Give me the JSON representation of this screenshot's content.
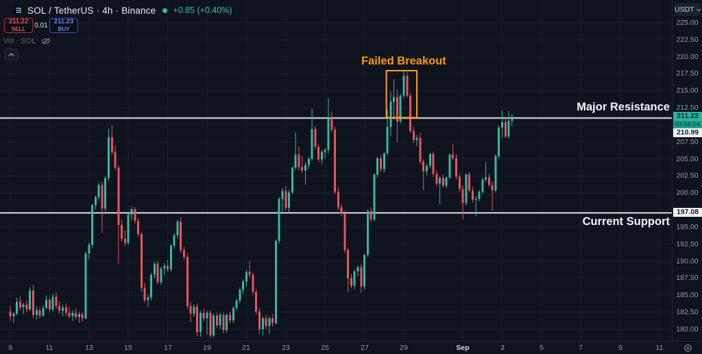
{
  "header": {
    "symbol_title": "SOL / TetherUS · 4h · Binance",
    "change_text": "+0.85 (+0.40%)",
    "sell_price": "211.22",
    "sell_label": "SELL",
    "spread": "0.01",
    "buy_price": "211.23",
    "buy_label": "BUY",
    "vol_label": "Vol · SOL"
  },
  "annotations": {
    "failed_breakout": "Failed Breakout",
    "major_resistance": "Major Resistance",
    "current_support": "Current Support"
  },
  "price_axis": {
    "currency_button": "USDT",
    "labels": [
      "225.00",
      "222.50",
      "220.00",
      "217.50",
      "215.00",
      "212.50",
      "207.50",
      "205.00",
      "202.50",
      "200.00",
      "195.00",
      "192.50",
      "190.00",
      "187.50",
      "185.00",
      "182.50",
      "180.00"
    ],
    "current_price_marker": "211.23",
    "countdown": "03:56:04",
    "resistance_marker": "210.99",
    "support_marker": "197.08"
  },
  "time_axis": {
    "labels": [
      {
        "text": "9",
        "day_offset": 0
      },
      {
        "text": "11",
        "day_offset": 2
      },
      {
        "text": "13",
        "day_offset": 4
      },
      {
        "text": "15",
        "day_offset": 6
      },
      {
        "text": "17",
        "day_offset": 8
      },
      {
        "text": "19",
        "day_offset": 10
      },
      {
        "text": "21",
        "day_offset": 12
      },
      {
        "text": "23",
        "day_offset": 14
      },
      {
        "text": "25",
        "day_offset": 16
      },
      {
        "text": "27",
        "day_offset": 18
      },
      {
        "text": "29",
        "day_offset": 20
      },
      {
        "text": "Sep",
        "day_offset": 23,
        "month": true
      },
      {
        "text": "3",
        "day_offset": 25
      },
      {
        "text": "5",
        "day_offset": 27
      },
      {
        "text": "7",
        "day_offset": 29
      },
      {
        "text": "9",
        "day_offset": 31
      },
      {
        "text": "11",
        "day_offset": 33
      }
    ]
  },
  "colors": {
    "background": "#0f131d",
    "up_candle": "#35b8a6",
    "down_candle": "#e9545f",
    "resistance_line": "#bfc2c9",
    "support_line": "#e9ebee",
    "breakout_box": "#ffa21e",
    "annotation_orange": "#ff9800",
    "current_label_bg": "#2bb3a2",
    "grid": "rgba(145,160,195,0.08)"
  },
  "chart_data": {
    "type": "candlestick",
    "title": "SOL / TetherUS · 4h · Binance",
    "timeframe": "4h",
    "quote_currency": "USDT",
    "last_price": 211.23,
    "change_abs": 0.85,
    "change_pct": 0.4,
    "ylim": [
      178.3,
      226.5
    ],
    "price_tick_step": 2.5,
    "start_date": "Aug 9",
    "candles_per_day": 6,
    "levels": {
      "resistance": 210.99,
      "support": 197.08
    },
    "highlight_box": {
      "label": "Failed Breakout",
      "start_index": 114.7,
      "end_index": 124,
      "price_low": 211.05,
      "price_high": 217.95
    },
    "candles": [
      [
        182.6,
        183.4,
        181.2,
        181.9
      ],
      [
        181.9,
        182.5,
        180.9,
        182.3
      ],
      [
        182.3,
        184.6,
        182.0,
        184.0
      ],
      [
        184.0,
        184.8,
        182.8,
        183.2
      ],
      [
        183.2,
        183.9,
        182.2,
        183.6
      ],
      [
        183.6,
        184.2,
        182.5,
        182.9
      ],
      [
        182.9,
        186.2,
        182.7,
        185.7
      ],
      [
        185.7,
        186.5,
        181.6,
        182.1
      ],
      [
        182.1,
        183.4,
        181.4,
        182.8
      ],
      [
        182.8,
        183.2,
        181.6,
        182.0
      ],
      [
        182.0,
        183.5,
        181.8,
        183.1
      ],
      [
        183.1,
        184.9,
        182.9,
        184.3
      ],
      [
        184.3,
        184.7,
        182.5,
        182.9
      ],
      [
        182.9,
        185.2,
        182.6,
        184.8
      ],
      [
        184.8,
        185.4,
        183.0,
        183.4
      ],
      [
        183.4,
        184.1,
        182.3,
        182.7
      ],
      [
        182.7,
        183.6,
        181.9,
        183.2
      ],
      [
        183.2,
        183.8,
        182.0,
        182.4
      ],
      [
        182.4,
        183.3,
        181.6,
        181.9
      ],
      [
        181.9,
        182.8,
        181.2,
        182.4
      ],
      [
        182.4,
        183.0,
        181.5,
        181.8
      ],
      [
        181.8,
        182.6,
        181.0,
        182.2
      ],
      [
        182.2,
        182.5,
        181.1,
        181.6
      ],
      [
        181.6,
        191.4,
        181.4,
        191.1
      ],
      [
        191.1,
        192.7,
        190.3,
        192.4
      ],
      [
        192.4,
        198.4,
        192.0,
        198.2
      ],
      [
        198.2,
        199.7,
        197.6,
        199.4
      ],
      [
        199.4,
        201.5,
        198.9,
        201.2
      ],
      [
        201.2,
        201.7,
        194.1,
        197.7
      ],
      [
        197.7,
        202.5,
        197.3,
        202.2
      ],
      [
        202.2,
        209.4,
        201.8,
        208.2
      ],
      [
        208.2,
        209.9,
        205.6,
        206.0
      ],
      [
        206.0,
        207.0,
        203.4,
        203.7
      ],
      [
        203.7,
        204.1,
        189.6,
        195.3
      ],
      [
        195.3,
        196.1,
        192.9,
        193.3
      ],
      [
        193.3,
        194.5,
        192.2,
        192.7
      ],
      [
        192.7,
        197.0,
        192.4,
        196.8
      ],
      [
        196.8,
        198.0,
        196.0,
        197.6
      ],
      [
        197.6,
        197.9,
        195.5,
        195.9
      ],
      [
        195.9,
        196.3,
        193.6,
        194.0
      ],
      [
        194.0,
        194.3,
        185.5,
        186.1
      ],
      [
        186.1,
        186.8,
        183.9,
        184.3
      ],
      [
        184.3,
        185.1,
        183.3,
        184.7
      ],
      [
        184.7,
        188.3,
        184.2,
        188.0
      ],
      [
        188.0,
        189.9,
        187.5,
        189.6
      ],
      [
        189.6,
        190.0,
        186.6,
        186.9
      ],
      [
        186.9,
        189.2,
        186.5,
        188.9
      ],
      [
        188.9,
        189.7,
        188.0,
        189.3
      ],
      [
        189.3,
        190.2,
        188.4,
        188.8
      ],
      [
        188.8,
        192.5,
        188.5,
        192.3
      ],
      [
        192.3,
        194.1,
        191.8,
        193.8
      ],
      [
        193.8,
        196.1,
        193.3,
        195.8
      ],
      [
        195.8,
        196.5,
        191.2,
        191.6
      ],
      [
        191.6,
        192.1,
        190.2,
        190.6
      ],
      [
        190.6,
        191.2,
        183.0,
        183.4
      ],
      [
        183.4,
        184.0,
        181.0,
        182.3
      ],
      [
        182.3,
        183.7,
        181.8,
        183.3
      ],
      [
        183.3,
        183.8,
        179.0,
        179.6
      ],
      [
        179.6,
        182.7,
        178.9,
        182.4
      ],
      [
        182.4,
        183.0,
        181.2,
        181.6
      ],
      [
        181.6,
        182.7,
        179.2,
        182.4
      ],
      [
        182.4,
        182.8,
        178.7,
        179.1
      ],
      [
        179.1,
        182.3,
        178.8,
        182.0
      ],
      [
        182.0,
        182.4,
        180.2,
        180.6
      ],
      [
        180.6,
        182.4,
        180.0,
        182.1
      ],
      [
        182.1,
        182.5,
        179.4,
        179.9
      ],
      [
        179.9,
        182.3,
        179.5,
        182.1
      ],
      [
        182.1,
        182.6,
        180.9,
        181.3
      ],
      [
        181.3,
        183.4,
        180.9,
        183.1
      ],
      [
        183.1,
        184.5,
        182.7,
        184.2
      ],
      [
        184.2,
        186.1,
        183.8,
        185.8
      ],
      [
        185.8,
        187.3,
        185.2,
        187.0
      ],
      [
        187.0,
        188.7,
        186.3,
        188.4
      ],
      [
        188.4,
        190.1,
        187.6,
        188.0
      ],
      [
        188.0,
        188.3,
        185.1,
        185.5
      ],
      [
        185.5,
        185.9,
        182.2,
        182.6
      ],
      [
        182.6,
        183.1,
        179.3,
        180.0
      ],
      [
        180.0,
        181.9,
        179.1,
        181.6
      ],
      [
        181.6,
        182.1,
        180.0,
        180.5
      ],
      [
        180.5,
        181.9,
        179.3,
        181.6
      ],
      [
        181.6,
        182.2,
        180.4,
        180.9
      ],
      [
        180.9,
        193.2,
        180.7,
        193.0
      ],
      [
        193.0,
        199.4,
        192.6,
        199.1
      ],
      [
        199.1,
        200.7,
        197.2,
        200.3
      ],
      [
        200.3,
        201.0,
        197.4,
        197.8
      ],
      [
        197.8,
        200.5,
        197.2,
        200.1
      ],
      [
        200.1,
        203.9,
        199.8,
        203.7
      ],
      [
        203.7,
        208.9,
        203.4,
        205.6
      ],
      [
        205.6,
        206.8,
        203.3,
        203.8
      ],
      [
        203.8,
        205.4,
        202.9,
        203.3
      ],
      [
        203.3,
        204.5,
        201.2,
        204.1
      ],
      [
        204.1,
        205.3,
        203.5,
        205.0
      ],
      [
        205.0,
        212.4,
        204.7,
        209.4
      ],
      [
        209.4,
        209.8,
        206.4,
        206.8
      ],
      [
        206.8,
        207.1,
        204.5,
        204.9
      ],
      [
        204.9,
        206.3,
        204.3,
        206.0
      ],
      [
        206.0,
        206.6,
        205.1,
        206.3
      ],
      [
        206.3,
        213.9,
        205.8,
        211.0
      ],
      [
        211.0,
        212.0,
        208.9,
        209.3
      ],
      [
        209.3,
        209.7,
        199.8,
        200.2
      ],
      [
        200.2,
        200.8,
        197.5,
        197.9
      ],
      [
        197.9,
        198.4,
        196.6,
        197.0
      ],
      [
        197.0,
        197.4,
        191.2,
        191.6
      ],
      [
        191.6,
        192.0,
        185.4,
        187.5
      ],
      [
        187.5,
        188.1,
        186.0,
        186.4
      ],
      [
        186.4,
        188.8,
        185.9,
        188.5
      ],
      [
        188.5,
        189.4,
        187.8,
        189.1
      ],
      [
        189.1,
        189.6,
        185.3,
        186.3
      ],
      [
        186.3,
        191.1,
        185.8,
        190.9
      ],
      [
        190.9,
        197.6,
        190.6,
        197.3
      ],
      [
        197.3,
        197.9,
        195.7,
        196.1
      ],
      [
        196.1,
        202.9,
        195.8,
        202.7
      ],
      [
        202.7,
        205.3,
        202.3,
        205.1
      ],
      [
        205.1,
        205.6,
        203.1,
        203.5
      ],
      [
        203.5,
        206.0,
        203.0,
        205.8
      ],
      [
        205.8,
        212.2,
        205.5,
        209.7
      ],
      [
        209.7,
        214.9,
        208.3,
        213.4
      ],
      [
        213.4,
        216.7,
        211.0,
        214.1
      ],
      [
        214.1,
        215.2,
        207.4,
        210.5
      ],
      [
        210.5,
        214.6,
        210.2,
        214.3
      ],
      [
        214.3,
        217.9,
        213.9,
        217.2
      ],
      [
        217.2,
        217.7,
        214.0,
        214.3
      ],
      [
        214.3,
        214.7,
        208.8,
        209.1
      ],
      [
        209.1,
        209.7,
        207.3,
        207.8
      ],
      [
        207.8,
        208.5,
        206.9,
        208.1
      ],
      [
        208.1,
        208.9,
        204.2,
        204.6
      ],
      [
        204.6,
        205.0,
        200.4,
        203.2
      ],
      [
        203.2,
        204.3,
        202.6,
        204.0
      ],
      [
        204.0,
        205.9,
        203.6,
        205.7
      ],
      [
        205.7,
        206.1,
        202.4,
        202.8
      ],
      [
        202.8,
        203.3,
        201.0,
        201.4
      ],
      [
        201.4,
        202.5,
        198.3,
        202.2
      ],
      [
        202.2,
        202.7,
        200.8,
        201.1
      ],
      [
        201.1,
        202.4,
        200.7,
        202.3
      ],
      [
        202.3,
        205.8,
        202.0,
        205.6
      ],
      [
        205.6,
        207.2,
        204.8,
        205.1
      ],
      [
        205.1,
        205.7,
        202.0,
        202.4
      ],
      [
        202.4,
        202.8,
        200.2,
        200.6
      ],
      [
        200.6,
        201.1,
        196.1,
        198.5
      ],
      [
        198.5,
        202.9,
        198.2,
        202.7
      ],
      [
        202.7,
        203.1,
        200.1,
        200.4
      ],
      [
        200.4,
        200.9,
        198.6,
        199.0
      ],
      [
        199.0,
        199.6,
        196.6,
        199.1
      ],
      [
        199.1,
        200.4,
        198.8,
        200.2
      ],
      [
        200.2,
        202.2,
        199.9,
        202.0
      ],
      [
        202.0,
        204.6,
        201.6,
        202.3
      ],
      [
        202.3,
        202.8,
        200.9,
        201.2
      ],
      [
        201.2,
        201.7,
        197.4,
        200.4
      ],
      [
        200.4,
        205.7,
        200.1,
        205.4
      ],
      [
        205.4,
        209.9,
        205.0,
        209.6
      ],
      [
        209.6,
        212.1,
        208.1,
        210.4
      ],
      [
        210.4,
        210.8,
        208.0,
        208.3
      ],
      [
        208.3,
        212.0,
        208.0,
        210.6
      ],
      [
        210.6,
        211.6,
        209.8,
        211.23
      ]
    ]
  }
}
